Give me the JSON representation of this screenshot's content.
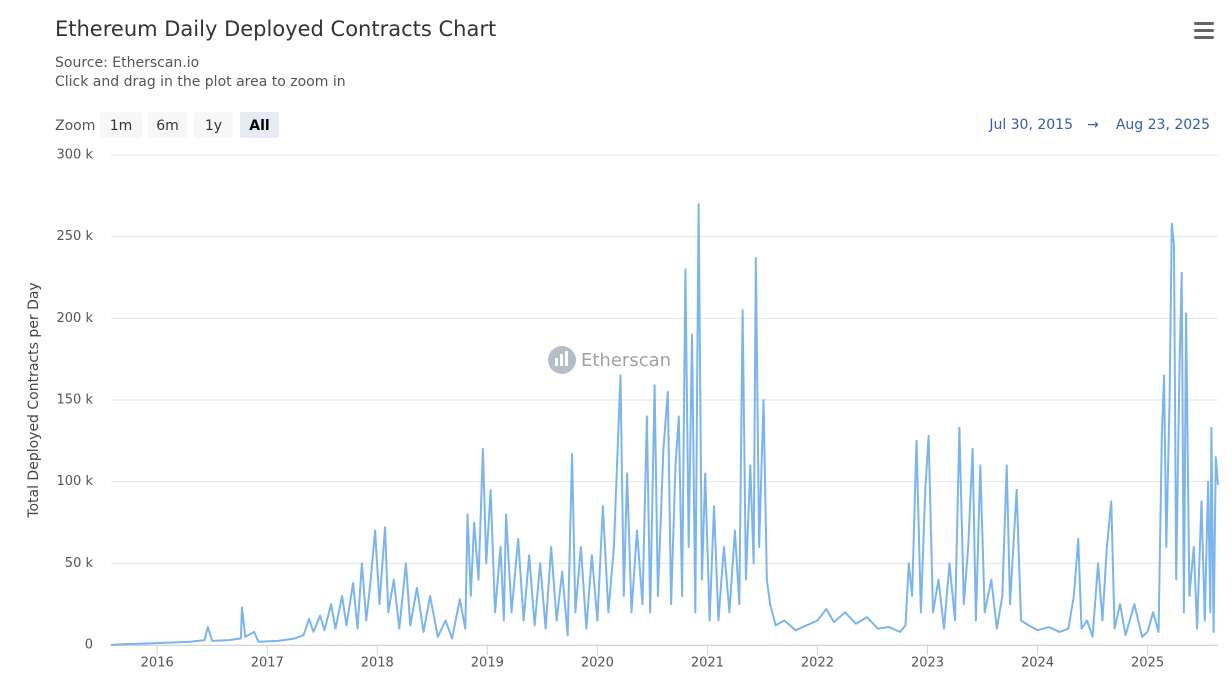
{
  "chart_data": {
    "type": "line",
    "title": "Ethereum Daily Deployed Contracts Chart",
    "source": "Source: Etherscan.io",
    "subtitle": "Click and drag in the plot area to zoom in",
    "zoom_label": "Zoom",
    "zoom_buttons": [
      "1m",
      "6m",
      "1y",
      "All"
    ],
    "range_start": "Jul 30, 2015",
    "range_arrow": "→",
    "range_end": "Aug 23, 2025",
    "watermark": "Etherscan",
    "y_label": "Total Deployed Contracts per Day",
    "color": "#7cb5ec",
    "grid": true,
    "xlim": [
      2015.58,
      2025.64
    ],
    "xticks": [
      2016,
      2017,
      2018,
      2019,
      2020,
      2021,
      2022,
      2023,
      2024,
      2025
    ],
    "ylim": [
      0,
      300000
    ],
    "yticks": [
      0,
      {
        "value": 50000,
        "label": "50 k"
      },
      {
        "value": 100000,
        "label": "100 k"
      },
      {
        "value": 150000,
        "label": "150 k"
      },
      {
        "value": 200000,
        "label": "200 k"
      },
      {
        "value": 250000,
        "label": "250 k"
      },
      {
        "value": 300000,
        "label": "300 k"
      }
    ],
    "x": [
      2015.58,
      2015.7,
      2015.85,
      2016.0,
      2016.15,
      2016.3,
      2016.43,
      2016.46,
      2016.5,
      2016.65,
      2016.76,
      2016.77,
      2016.8,
      2016.88,
      2016.92,
      2017.1,
      2017.25,
      2017.33,
      2017.38,
      2017.42,
      2017.48,
      2017.52,
      2017.58,
      2017.62,
      2017.68,
      2017.72,
      2017.78,
      2017.82,
      2017.86,
      2017.9,
      2017.94,
      2017.98,
      2018.02,
      2018.07,
      2018.1,
      2018.15,
      2018.2,
      2018.26,
      2018.3,
      2018.36,
      2018.42,
      2018.48,
      2018.55,
      2018.62,
      2018.68,
      2018.75,
      2018.8,
      2018.82,
      2018.85,
      2018.88,
      2018.92,
      2018.96,
      2018.99,
      2019.03,
      2019.07,
      2019.12,
      2019.15,
      2019.17,
      2019.22,
      2019.28,
      2019.33,
      2019.38,
      2019.43,
      2019.48,
      2019.53,
      2019.58,
      2019.63,
      2019.68,
      2019.73,
      2019.77,
      2019.8,
      2019.85,
      2019.9,
      2019.95,
      2020.0,
      2020.05,
      2020.1,
      2020.15,
      2020.21,
      2020.24,
      2020.27,
      2020.31,
      2020.36,
      2020.41,
      2020.45,
      2020.48,
      2020.52,
      2020.55,
      2020.6,
      2020.64,
      2020.67,
      2020.71,
      2020.74,
      2020.77,
      2020.8,
      2020.83,
      2020.86,
      2020.89,
      2020.92,
      2020.95,
      2020.98,
      2021.02,
      2021.06,
      2021.1,
      2021.15,
      2021.2,
      2021.25,
      2021.29,
      2021.32,
      2021.35,
      2021.39,
      2021.42,
      2021.44,
      2021.47,
      2021.51,
      2021.54,
      2021.57,
      2021.62,
      2021.7,
      2021.8,
      2021.9,
      2022.0,
      2022.08,
      2022.15,
      2022.25,
      2022.35,
      2022.45,
      2022.55,
      2022.65,
      2022.75,
      2022.8,
      2022.83,
      2022.86,
      2022.9,
      2022.94,
      2022.98,
      2023.01,
      2023.05,
      2023.1,
      2023.15,
      2023.2,
      2023.25,
      2023.29,
      2023.33,
      2023.37,
      2023.41,
      2023.44,
      2023.48,
      2023.52,
      2023.58,
      2023.63,
      2023.68,
      2023.72,
      2023.75,
      2023.81,
      2023.85,
      2023.92,
      2024.0,
      2024.1,
      2024.2,
      2024.28,
      2024.33,
      2024.37,
      2024.4,
      2024.45,
      2024.5,
      2024.55,
      2024.59,
      2024.63,
      2024.67,
      2024.7,
      2024.75,
      2024.8,
      2024.88,
      2024.95,
      2025.0,
      2025.05,
      2025.1,
      2025.13,
      2025.15,
      2025.17,
      2025.2,
      2025.22,
      2025.24,
      2025.26,
      2025.29,
      2025.31,
      2025.33,
      2025.35,
      2025.38,
      2025.42,
      2025.45,
      2025.49,
      2025.52,
      2025.55,
      2025.57,
      2025.58,
      2025.6,
      2025.62,
      2025.64
    ],
    "values": [
      0,
      500,
      800,
      1200,
      1500,
      2000,
      3000,
      11000,
      2500,
      3000,
      4000,
      23000,
      5000,
      8000,
      2000,
      2500,
      4000,
      6000,
      16000,
      8000,
      18000,
      9000,
      25000,
      10000,
      30000,
      12000,
      38000,
      10000,
      50000,
      15000,
      40000,
      70000,
      25000,
      72000,
      20000,
      40000,
      10000,
      50000,
      12000,
      35000,
      8000,
      30000,
      5000,
      15000,
      4000,
      28000,
      10000,
      80000,
      30000,
      75000,
      40000,
      120000,
      50000,
      95000,
      20000,
      60000,
      15000,
      80000,
      20000,
      65000,
      15000,
      55000,
      12000,
      50000,
      10000,
      60000,
      15000,
      45000,
      6000,
      117000,
      20000,
      60000,
      10000,
      55000,
      15000,
      85000,
      20000,
      60000,
      165000,
      30000,
      105000,
      20000,
      70000,
      25000,
      140000,
      20000,
      159000,
      30000,
      120000,
      155000,
      25000,
      110000,
      140000,
      30000,
      230000,
      60000,
      190000,
      20000,
      270000,
      40000,
      105000,
      15000,
      85000,
      15000,
      60000,
      20000,
      70000,
      25000,
      205000,
      40000,
      110000,
      50000,
      237000,
      60000,
      150000,
      40000,
      25000,
      12000,
      15000,
      9000,
      12000,
      15000,
      22000,
      14000,
      20000,
      13000,
      17000,
      10000,
      11000,
      8000,
      12000,
      50000,
      30000,
      125000,
      20000,
      95000,
      128000,
      20000,
      40000,
      10000,
      50000,
      15000,
      133000,
      25000,
      60000,
      120000,
      15000,
      110000,
      20000,
      40000,
      10000,
      30000,
      110000,
      25000,
      95000,
      15000,
      12000,
      9000,
      11000,
      8000,
      10000,
      30000,
      65000,
      10000,
      15000,
      5000,
      50000,
      15000,
      60000,
      88000,
      10000,
      25000,
      6000,
      25000,
      5000,
      8000,
      20000,
      8000,
      130000,
      165000,
      60000,
      150000,
      258000,
      245000,
      40000,
      170000,
      228000,
      20000,
      203000,
      30000,
      60000,
      10000,
      88000,
      15000,
      100000,
      20000,
      133000,
      8000,
      115000,
      98000
    ]
  }
}
